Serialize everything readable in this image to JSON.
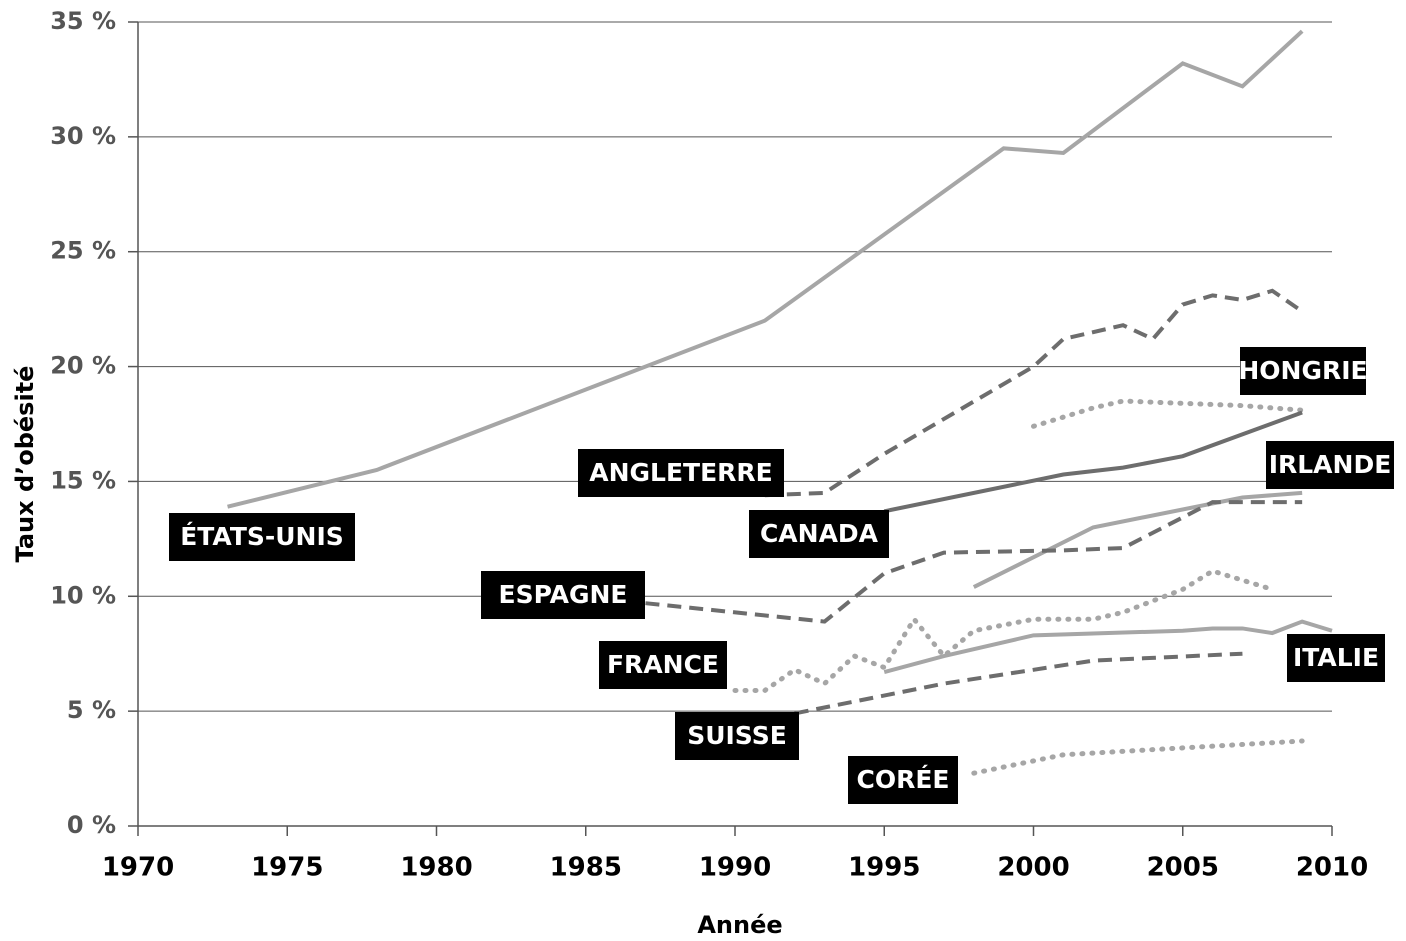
{
  "chart_data": {
    "type": "line",
    "x_label": "Année",
    "y_label": "Taux d’obésité",
    "xlim": [
      1970,
      2010
    ],
    "xticks": [
      1970,
      1975,
      1980,
      1985,
      1990,
      1995,
      2000,
      2005,
      2010
    ],
    "ylim": [
      0,
      35
    ],
    "yticks": [
      {
        "value": 0,
        "label": "0 %"
      },
      {
        "value": 5,
        "label": "5 %"
      },
      {
        "value": 10,
        "label": "10 %"
      },
      {
        "value": 15,
        "label": "15 %"
      },
      {
        "value": 20,
        "label": "20 %"
      },
      {
        "value": 25,
        "label": "25 %"
      },
      {
        "value": 30,
        "label": "30 %"
      },
      {
        "value": 35,
        "label": "35 %"
      }
    ],
    "grid": true,
    "series": [
      {
        "name": "ÉTATS-UNIS",
        "color": "#a6a6a6",
        "dash": "solid",
        "x": [
          1973,
          1978,
          1991,
          1999,
          2001,
          2005,
          2007,
          2009
        ],
        "values": [
          13.9,
          15.5,
          22.0,
          29.5,
          29.3,
          33.2,
          32.2,
          34.6
        ]
      },
      {
        "name": "ANGLETERRE",
        "color": "#6d6d6d",
        "dash": "dashed",
        "x": [
          1991,
          1993,
          1995,
          2000,
          2001,
          2003,
          2004,
          2005,
          2006,
          2007,
          2008,
          2009
        ],
        "values": [
          14.4,
          14.5,
          16.2,
          20.0,
          21.2,
          21.8,
          21.2,
          22.7,
          23.1,
          22.9,
          23.3,
          22.4
        ]
      },
      {
        "name": "HONGRIE",
        "color": "#a6a6a6",
        "dash": "dotted",
        "x": [
          2000,
          2002,
          2003,
          2005,
          2007,
          2009
        ],
        "values": [
          17.4,
          18.2,
          18.5,
          18.4,
          18.3,
          18.1
        ]
      },
      {
        "name": "CANADA",
        "color": "#6d6d6d",
        "dash": "solid",
        "x": [
          1995,
          2001,
          2003,
          2005,
          2009
        ],
        "values": [
          13.7,
          15.3,
          15.6,
          16.1,
          18.0
        ]
      },
      {
        "name": "IRLANDE",
        "color": "#a6a6a6",
        "dash": "solid",
        "x": [
          1998,
          2002,
          2007,
          2009
        ],
        "values": [
          10.4,
          13.0,
          14.3,
          14.5
        ]
      },
      {
        "name": "ESPAGNE",
        "color": "#6d6d6d",
        "dash": "dashed",
        "x": [
          1987,
          1993,
          1995,
          1997,
          2001,
          2003,
          2006,
          2009
        ],
        "values": [
          9.7,
          8.9,
          11.0,
          11.9,
          12.0,
          12.1,
          14.1,
          14.1
        ]
      },
      {
        "name": "FRANCE",
        "color": "#a6a6a6",
        "dash": "dotted",
        "x": [
          1990,
          1991,
          1992,
          1993,
          1994,
          1995,
          1996,
          1997,
          1998,
          2000,
          2002,
          2003,
          2005,
          2006,
          2008
        ],
        "values": [
          5.9,
          5.9,
          6.8,
          6.2,
          7.4,
          6.9,
          9.0,
          7.4,
          8.5,
          9.0,
          9.0,
          9.3,
          10.3,
          11.1,
          10.3
        ]
      },
      {
        "name": "ITALIE",
        "color": "#a6a6a6",
        "dash": "solid",
        "x": [
          1995,
          1997,
          2000,
          2005,
          2006,
          2007,
          2008,
          2009,
          2010
        ],
        "values": [
          6.7,
          7.4,
          8.3,
          8.5,
          8.6,
          8.6,
          8.4,
          8.9,
          8.5
        ]
      },
      {
        "name": "SUISSE",
        "color": "#6d6d6d",
        "dash": "dashed",
        "x": [
          1992,
          1997,
          2002,
          2007
        ],
        "values": [
          4.9,
          6.2,
          7.2,
          7.5
        ]
      },
      {
        "name": "CORÉE",
        "color": "#a6a6a6",
        "dash": "dotted",
        "x": [
          1998,
          2001,
          2005,
          2009
        ],
        "values": [
          2.3,
          3.1,
          3.4,
          3.7
        ]
      }
    ]
  }
}
